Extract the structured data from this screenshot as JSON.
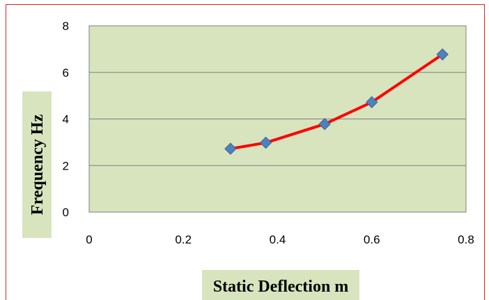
{
  "chart_data": {
    "type": "line",
    "title": "",
    "xlabel": "Static Deflection m",
    "ylabel": "Frequency Hz",
    "xlim": [
      0,
      0.8
    ],
    "ylim": [
      0,
      8
    ],
    "xticks": [
      "0",
      "0.2",
      "0.4",
      "0.6",
      "0.8"
    ],
    "yticks": [
      "0",
      "2",
      "4",
      "6",
      "8"
    ],
    "grid": "horizontal",
    "legend": "none",
    "series": [
      {
        "x": [
          0.3,
          0.375,
          0.5,
          0.6,
          0.75
        ],
        "y": [
          2.72,
          2.98,
          3.78,
          4.72,
          6.77
        ],
        "line_color": "#ff0000",
        "marker": "diamond",
        "marker_color": "#4f81bd"
      }
    ],
    "plot_background": "#d7e4bd",
    "title_box_background": "#d7e4bd",
    "frame_color": "#e02020"
  }
}
